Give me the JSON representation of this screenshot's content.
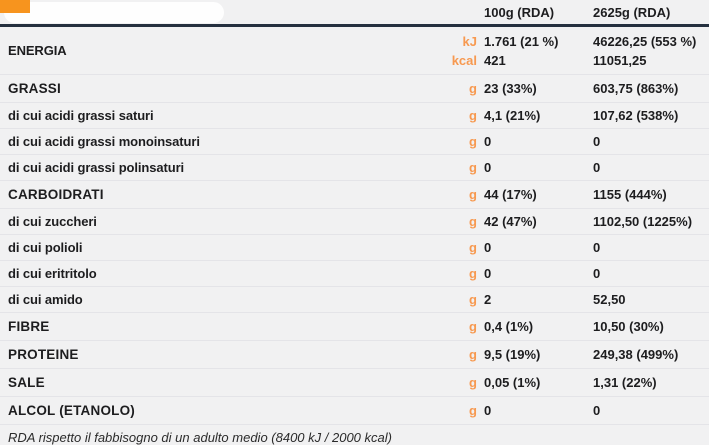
{
  "page": {
    "background": "#f1f1f2",
    "accent_orange": "#f79950",
    "header_line_color": "#25303f",
    "divider_color": "#e4e4e8",
    "text_color": "#1d1d1f"
  },
  "table": {
    "header": {
      "col1": "100g (RDA)",
      "col2": "2625g (RDA)"
    },
    "rows": [
      {
        "label": "ENERGIA",
        "type": "section",
        "units": [
          "kJ",
          "kcal"
        ],
        "col1_lines": [
          "1.761 (21 %)",
          "421"
        ],
        "col2_lines": [
          "46226,25 (553 %)",
          "11051,25"
        ]
      },
      {
        "label": "GRASSI",
        "type": "section",
        "unit": "g",
        "col1": "23 (33%)",
        "col2": "603,75 (863%)"
      },
      {
        "label": "di cui acidi grassi saturi",
        "type": "sub",
        "unit": "g",
        "col1": "4,1 (21%)",
        "col2": "107,62  (538%)"
      },
      {
        "label": "di cui acidi grassi monoinsaturi",
        "type": "sub",
        "unit": "g",
        "col1": "0",
        "col2": "0"
      },
      {
        "label": "di cui acidi grassi polinsaturi",
        "type": "sub",
        "unit": "g",
        "col1": "0",
        "col2": "0"
      },
      {
        "label": "CARBOIDRATI",
        "type": "section",
        "unit": "g",
        "col1": "44 (17%)",
        "col2": "1155 (444%)"
      },
      {
        "label": "di cui zuccheri",
        "type": "sub",
        "unit": "g",
        "col1": "42 (47%)",
        "col2": "1102,50 (1225%)"
      },
      {
        "label": "di cui polioli",
        "type": "sub",
        "unit": "g",
        "col1": "0",
        "col2": "0"
      },
      {
        "label": "di cui eritritolo",
        "type": "sub",
        "unit": "g",
        "col1": "0",
        "col2": "0"
      },
      {
        "label": "di cui amido",
        "type": "sub",
        "unit": "g",
        "col1": "2",
        "col2": "52,50"
      },
      {
        "label": "FIBRE",
        "type": "section",
        "unit": "g",
        "col1": "0,4 (1%)",
        "col2": "10,50 (30%)"
      },
      {
        "label": "PROTEINE",
        "type": "section",
        "unit": "g",
        "col1": "9,5 (19%)",
        "col2": "249,38 (499%)"
      },
      {
        "label": "SALE",
        "type": "section",
        "unit": "g",
        "col1": "0,05 (1%)",
        "col2": "1,31 (22%)"
      },
      {
        "label": "ALCOL (ETANOLO)",
        "type": "section",
        "unit": "g",
        "col1": "0",
        "col2": "0"
      }
    ],
    "footnote": "RDA rispetto il fabbisogno di un adulto medio (8400 kJ / 2000 kcal)"
  }
}
